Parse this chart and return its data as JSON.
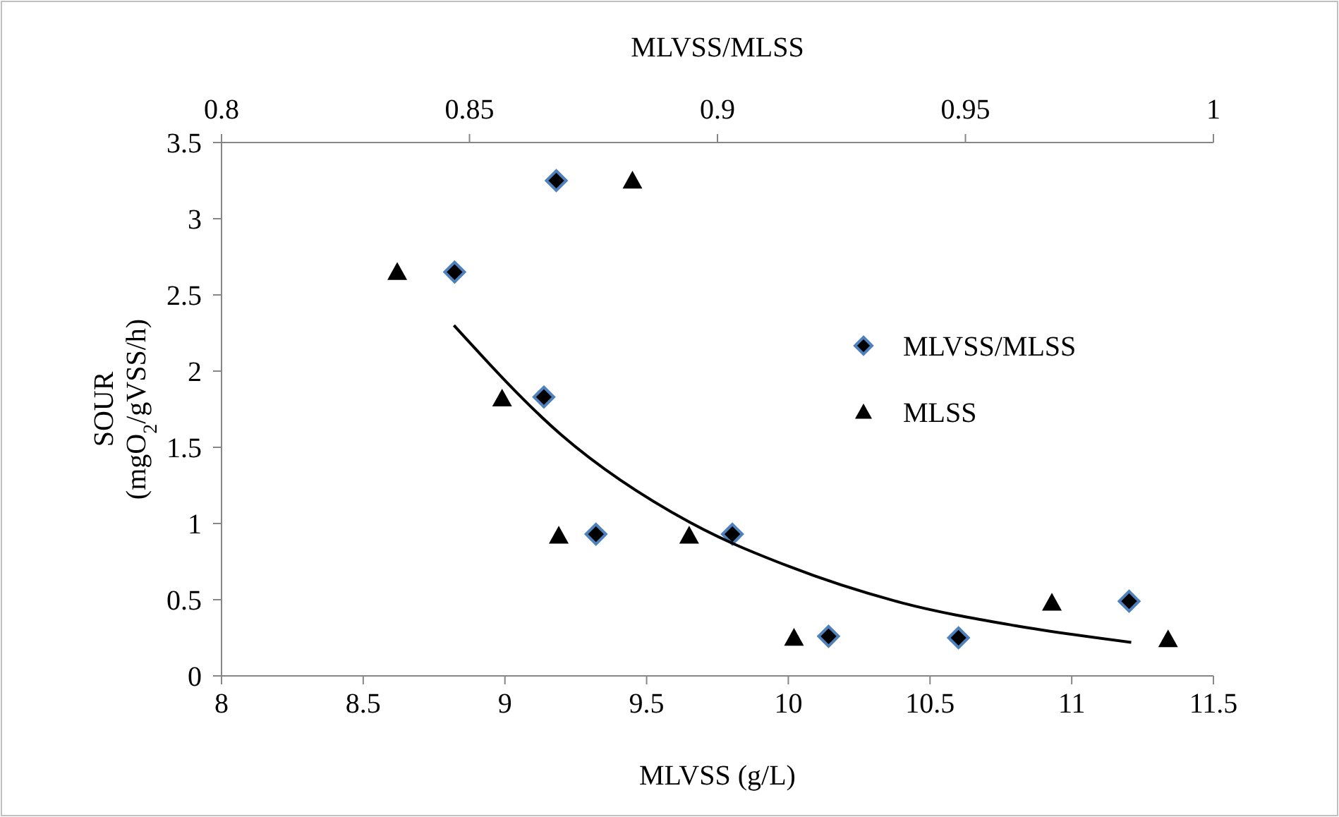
{
  "chart_data": {
    "type": "scatter",
    "xlabel": "MLVSS (g/L)",
    "x2label": "MLVSS/MLSS",
    "ylabel": "SOUR\n(mgO$_{2}$/gVSS/h)",
    "xlim": [
      8,
      11.5
    ],
    "xticks": [
      8,
      8.5,
      9,
      9.5,
      10,
      10.5,
      11,
      11.5
    ],
    "x2lim": [
      0.8,
      1
    ],
    "x2ticks": [
      0.8,
      0.85,
      0.9,
      0.95,
      1
    ],
    "ylim": [
      0,
      3.5
    ],
    "yticks": [
      0,
      0.5,
      1,
      1.5,
      2,
      2.5,
      3,
      3.5
    ],
    "grid": false,
    "legend": "right",
    "series": [
      {
        "name": "MLVSS/MLSS",
        "color": "#000000",
        "marker": "diamond",
        "axis": "x2",
        "x": [
          0.8675,
          0.847,
          0.865,
          0.8755,
          0.903,
          0.9224,
          0.9486,
          0.983
        ],
        "values": [
          3.25,
          2.65,
          1.83,
          0.93,
          0.93,
          0.26,
          0.25,
          0.49
        ]
      },
      {
        "name": "MLSS",
        "color": "#000000",
        "marker": "triangle",
        "x": [
          9.45,
          8.62,
          8.99,
          9.19,
          9.65,
          10.02,
          10.93,
          11.34
        ],
        "values": [
          3.25,
          2.65,
          1.82,
          0.92,
          0.92,
          0.25,
          0.48,
          0.24
        ]
      },
      {
        "type": "line",
        "color": "#000000",
        "marker": "none",
        "x": [
          8.82,
          9.2,
          9.65,
          10,
          10.4,
          10.8,
          11.21
        ],
        "values": [
          2.3,
          1.58,
          1.01,
          0.72,
          0.48,
          0.33,
          0.22
        ]
      }
    ]
  }
}
